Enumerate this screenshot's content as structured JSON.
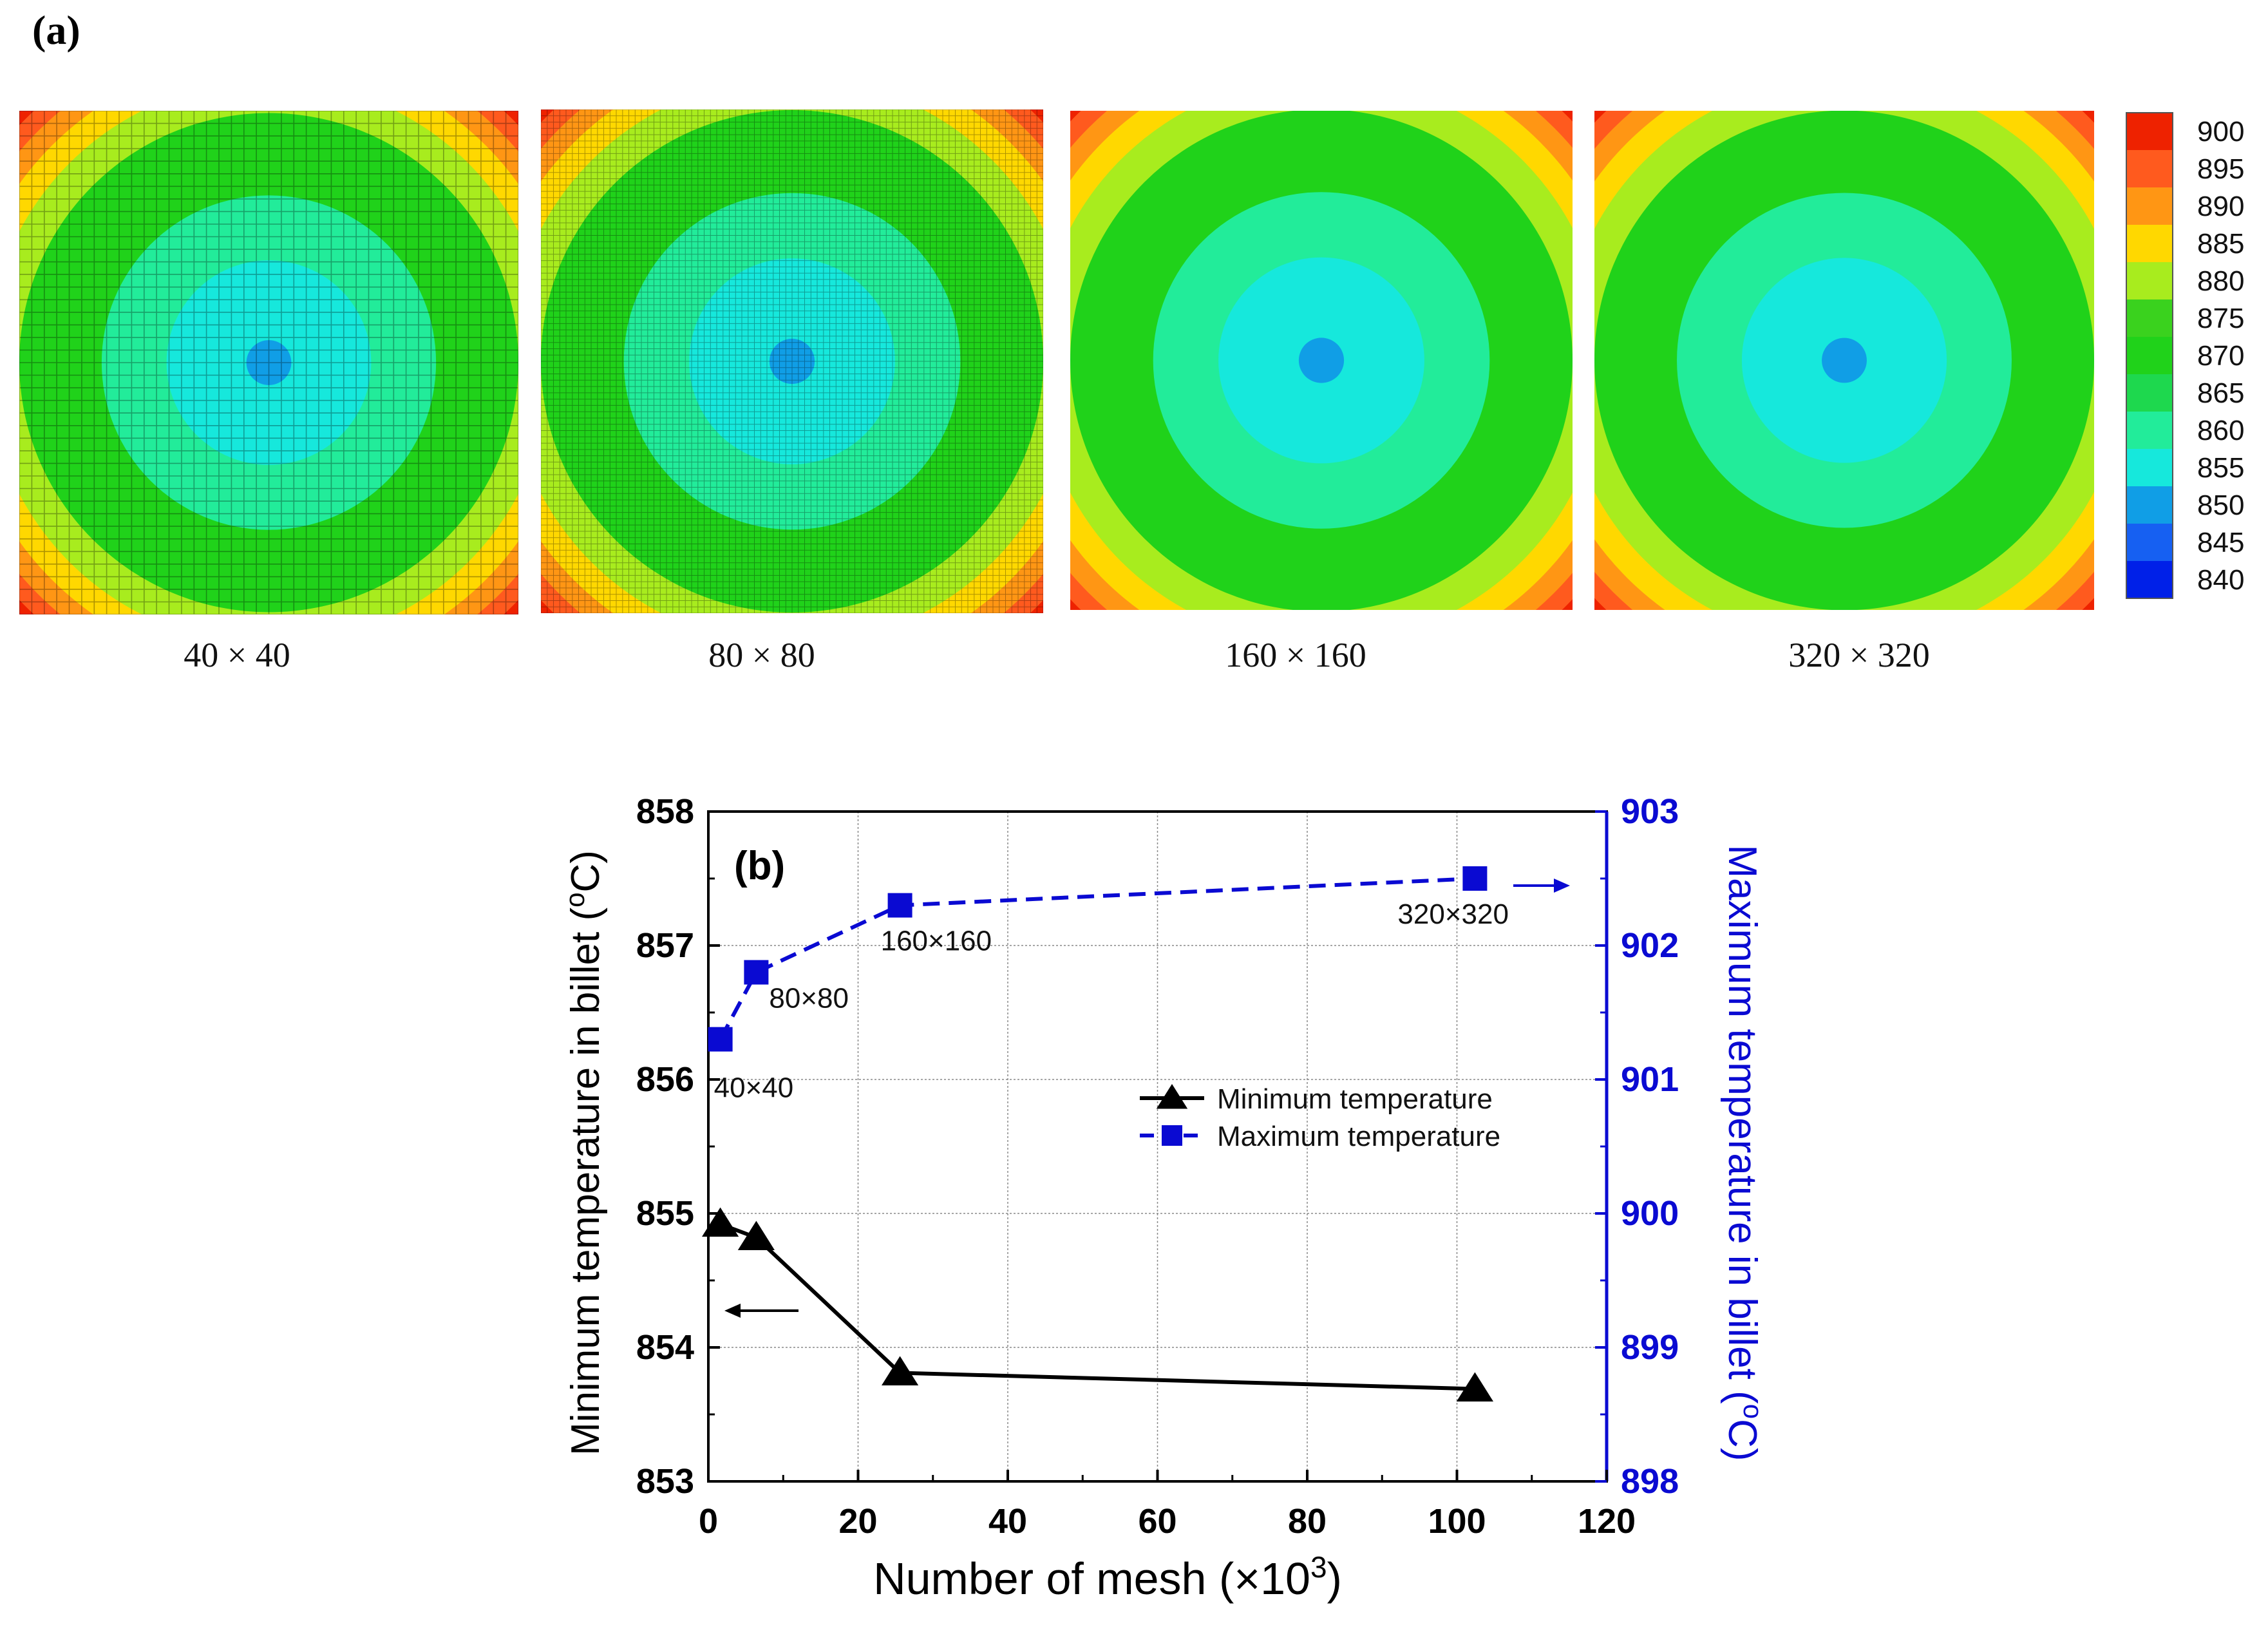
{
  "panel_a": {
    "label": "(a)",
    "meshes": [
      {
        "label": "40 × 40",
        "divisions": 40
      },
      {
        "label": "80 × 80",
        "divisions": 80
      },
      {
        "label": "160 × 160",
        "divisions": 0
      },
      {
        "label": "320 × 320",
        "divisions": 0
      }
    ],
    "contour_levels": [
      900,
      895,
      890,
      885,
      880,
      875,
      870,
      865,
      860,
      855,
      850,
      845,
      840
    ],
    "contour_colors": [
      "#ee2200",
      "#ff5a1e",
      "#ff9614",
      "#ffd800",
      "#a8ec1e",
      "#3ad21e",
      "#20d21a",
      "#1ed84e",
      "#22ec9a",
      "#16e8dc",
      "#109ee6",
      "#1660f2",
      "#0020e8"
    ],
    "legend_labels": [
      "900",
      "895",
      "890",
      "885",
      "880",
      "875",
      "870",
      "865",
      "860",
      "855",
      "850",
      "845",
      "840"
    ]
  },
  "chart_data": {
    "type": "line",
    "panel_label": "(b)",
    "xlabel": "Number of mesh (×10",
    "xlabel_sup": "3",
    "xlabel_tail": ")",
    "ylabel_left": "Minimum temperature in billet (",
    "ylabel_left_sup": "o",
    "ylabel_left_tail": "C)",
    "ylabel_right": "Maximum temperature in billet (",
    "ylabel_right_sup": "o",
    "ylabel_right_tail": "C)",
    "xlim": [
      0,
      120
    ],
    "ylim_left": [
      853,
      858
    ],
    "ylim_right": [
      898,
      903
    ],
    "xticks": [
      "0",
      "20",
      "40",
      "60",
      "80",
      "100",
      "120"
    ],
    "yticks_left": [
      "853",
      "854",
      "855",
      "856",
      "857",
      "858"
    ],
    "yticks_right": [
      "898",
      "899",
      "900",
      "901",
      "902",
      "903"
    ],
    "x": [
      1.6,
      6.4,
      25.6,
      102.4
    ],
    "series": [
      {
        "name": "Minimum temperature",
        "axis": "left",
        "color": "#000000",
        "values": [
          854.92,
          854.82,
          853.81,
          853.69
        ]
      },
      {
        "name": "Maximum temperature",
        "axis": "right",
        "color": "#0a0ad2",
        "values": [
          901.3,
          901.8,
          902.3,
          902.5
        ]
      }
    ],
    "point_labels": [
      "40×40",
      "80×80",
      "160×160",
      "320×320"
    ],
    "grid": true,
    "legend_position": "middle-right"
  }
}
